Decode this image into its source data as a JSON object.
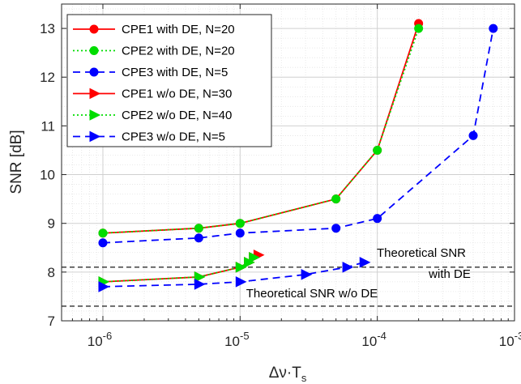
{
  "chart_data": {
    "type": "line",
    "xlabel": "Δν·T",
    "xlabel_sub": "s",
    "ylabel": "SNR [dB]",
    "x_scale": "log",
    "xlim": [
      5e-07,
      0.001
    ],
    "ylim": [
      7,
      13.5
    ],
    "x_ticks": [
      {
        "value": 1e-06,
        "base": "10",
        "exp": "-6"
      },
      {
        "value": 1e-05,
        "base": "10",
        "exp": "-5"
      },
      {
        "value": 0.0001,
        "base": "10",
        "exp": "-4"
      },
      {
        "value": 0.001,
        "base": "10",
        "exp": "-3"
      }
    ],
    "y_ticks": [
      7,
      8,
      9,
      10,
      11,
      12,
      13
    ],
    "grid": true,
    "minor_grid": true,
    "legend_position": "top-left",
    "series": [
      {
        "name": "CPE1 with DE, N=20",
        "color": "#ff0000",
        "dash": "solid",
        "marker": "circle",
        "x": [
          1e-06,
          5e-06,
          1e-05,
          5e-05,
          0.0001,
          0.0002
        ],
        "y": [
          8.8,
          8.9,
          9.0,
          9.5,
          10.5,
          13.1
        ]
      },
      {
        "name": "CPE2 with DE, N=20",
        "color": "#00dd00",
        "dash": "dotted",
        "marker": "circle",
        "x": [
          1e-06,
          5e-06,
          1e-05,
          5e-05,
          0.0001,
          0.0002
        ],
        "y": [
          8.8,
          8.9,
          9.0,
          9.5,
          10.5,
          13.0
        ]
      },
      {
        "name": "CPE3 with DE, N=5",
        "color": "#0000ff",
        "dash": "dashed",
        "marker": "circle",
        "x": [
          1e-06,
          5e-06,
          1e-05,
          5e-05,
          0.0001,
          0.0005,
          0.0007
        ],
        "y": [
          8.6,
          8.7,
          8.8,
          8.9,
          9.1,
          10.8,
          13.0
        ]
      },
      {
        "name": "CPE1 w/o DE, N=30",
        "color": "#ff0000",
        "dash": "solid",
        "marker": "triangle-right",
        "x": [
          1e-06,
          5e-06,
          1e-05,
          1.15e-05,
          1.25e-05,
          1.35e-05
        ],
        "y": [
          7.8,
          7.9,
          8.1,
          8.2,
          8.3,
          8.35
        ]
      },
      {
        "name": "CPE2 w/o DE, N=40",
        "color": "#00dd00",
        "dash": "dotted",
        "marker": "triangle-right",
        "x": [
          1e-06,
          5e-06,
          1e-05,
          1.15e-05,
          1.25e-05
        ],
        "y": [
          7.8,
          7.9,
          8.1,
          8.2,
          8.3
        ]
      },
      {
        "name": "CPE3 w/o DE, N=5",
        "color": "#0000ff",
        "dash": "dashed",
        "marker": "triangle-right",
        "x": [
          1e-06,
          5e-06,
          1e-05,
          3e-05,
          6e-05,
          8e-05
        ],
        "y": [
          7.7,
          7.75,
          7.8,
          7.95,
          8.1,
          8.2
        ]
      }
    ],
    "reference_lines": [
      {
        "y": 8.1,
        "label_line1": "Theoretical SNR",
        "label_line2": "with DE"
      },
      {
        "y": 7.3,
        "label": "Theoretical SNR w/o DE"
      }
    ]
  }
}
